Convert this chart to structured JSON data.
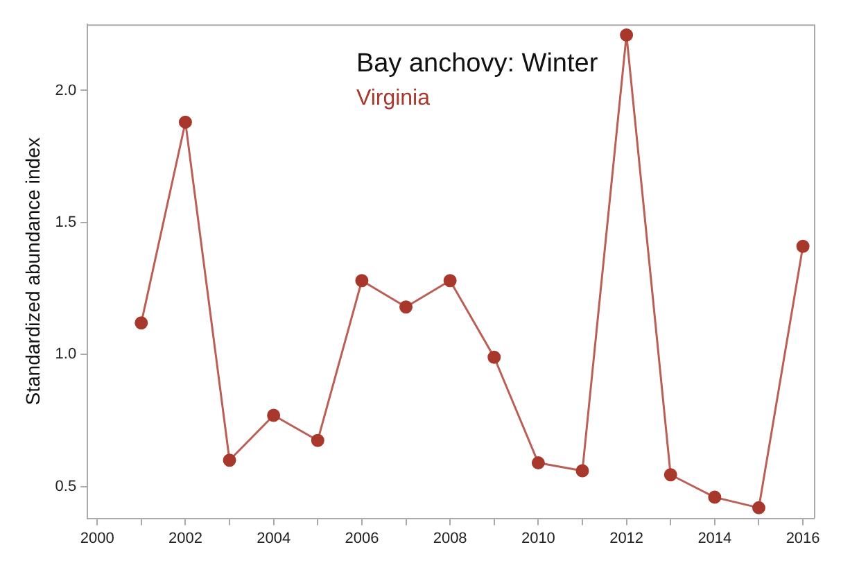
{
  "chart_data": {
    "type": "line",
    "title": "Bay anchovy: Winter",
    "ylabel": "Standardized abundance index",
    "x": [
      2001,
      2002,
      2003,
      2004,
      2005,
      2006,
      2007,
      2008,
      2009,
      2010,
      2011,
      2012,
      2013,
      2014,
      2015,
      2016
    ],
    "series": [
      {
        "name": "Virginia",
        "color": "#a8372c",
        "values": [
          1.12,
          1.88,
          0.6,
          0.77,
          0.675,
          1.28,
          1.18,
          1.28,
          0.99,
          0.59,
          0.56,
          2.21,
          0.545,
          0.46,
          0.42,
          1.41
        ]
      }
    ],
    "xlim": [
      1999.78,
      2016.25
    ],
    "ylim": [
      0.38,
      2.25
    ],
    "xticks": [
      2000,
      {
        "value": 2001,
        "label": null
      },
      2002,
      {
        "value": 2003,
        "label": null
      },
      2004,
      {
        "value": 2005,
        "label": null
      },
      2006,
      {
        "value": 2007,
        "label": null
      },
      2008,
      {
        "value": 2009,
        "label": null
      },
      2010,
      {
        "value": 2011,
        "label": null
      },
      2012,
      {
        "value": 2013,
        "label": null
      },
      2014,
      {
        "value": 2015,
        "label": null
      },
      2016
    ],
    "yticks": [
      0.5,
      {
        "value": 1,
        "label": "1.0"
      },
      1.5,
      {
        "value": 2,
        "label": "2.0"
      }
    ],
    "grid": false,
    "legend": false,
    "marker": "circle",
    "line_style": "solid"
  }
}
